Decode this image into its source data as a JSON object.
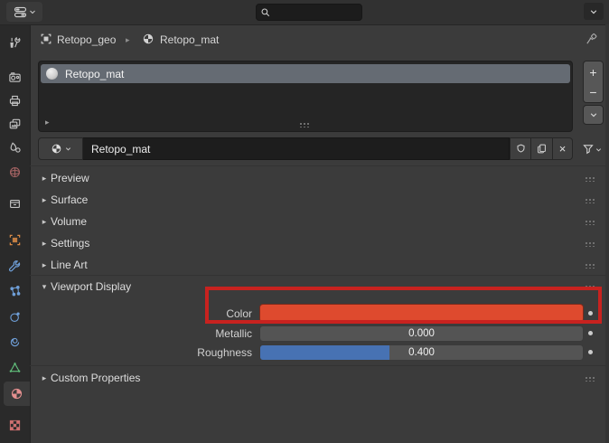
{
  "icons": {
    "collapsed_arrow": "▸",
    "expanded_arrow": "▾",
    "breadcrumb_sep": "▸",
    "list_corner_arrow": "▸",
    "plus": "+",
    "minus": "−",
    "close": "×"
  },
  "header": {
    "search_value": "",
    "search_placeholder": ""
  },
  "breadcrumb": {
    "object_name": "Retopo_geo",
    "material_name": "Retopo_mat"
  },
  "rail": {
    "tabs": [
      {
        "name": "tool"
      },
      {
        "name": "render"
      },
      {
        "name": "output"
      },
      {
        "name": "view-layer"
      },
      {
        "name": "scene"
      },
      {
        "name": "world"
      },
      {
        "name": "collection"
      },
      {
        "name": "object"
      },
      {
        "name": "modifiers"
      },
      {
        "name": "particles"
      },
      {
        "name": "physics"
      },
      {
        "name": "constraints"
      },
      {
        "name": "object-data"
      },
      {
        "name": "material",
        "active": true
      },
      {
        "name": "texture"
      }
    ]
  },
  "material_slots": {
    "items": [
      {
        "name": "Retopo_mat",
        "selected": true
      }
    ]
  },
  "datablock": {
    "name": "Retopo_mat"
  },
  "panels": {
    "preview": {
      "label": "Preview",
      "expanded": false
    },
    "surface": {
      "label": "Surface",
      "expanded": false
    },
    "volume": {
      "label": "Volume",
      "expanded": false
    },
    "settings": {
      "label": "Settings",
      "expanded": false
    },
    "line_art": {
      "label": "Line Art",
      "expanded": false
    },
    "viewport_display": {
      "label": "Viewport Display",
      "expanded": true
    },
    "custom_properties": {
      "label": "Custom Properties",
      "expanded": false
    }
  },
  "viewport_display": {
    "color": {
      "label": "Color",
      "value": "#de4a2e"
    },
    "metallic": {
      "label": "Metallic",
      "value": "0.000",
      "fill_pct": 0
    },
    "roughness": {
      "label": "Roughness",
      "value": "0.400",
      "fill_pct": 40
    }
  },
  "annotation": {
    "color": "#c8221f"
  },
  "colors": {
    "slider_blue": "#4772b3",
    "selected_row": "#656b73",
    "swatch_red": "#de4a2e"
  }
}
